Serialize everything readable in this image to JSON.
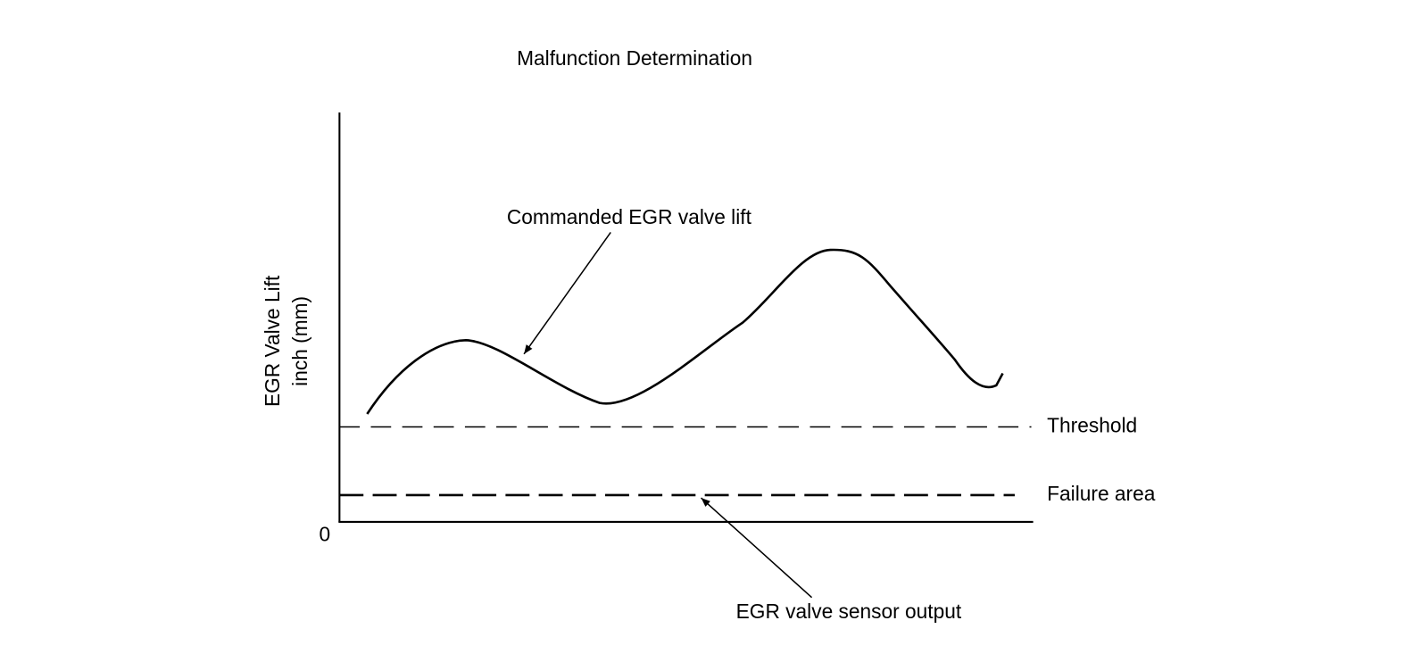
{
  "title": "Malfunction Determination",
  "y_axis": {
    "label_line1": "EGR Valve Lift",
    "label_line2": "inch (mm)",
    "origin": "0"
  },
  "annotations": {
    "commanded": "Commanded EGR valve lift",
    "threshold": "Threshold",
    "failure_area": "Failure area",
    "sensor_output": "EGR valve sensor output"
  }
}
